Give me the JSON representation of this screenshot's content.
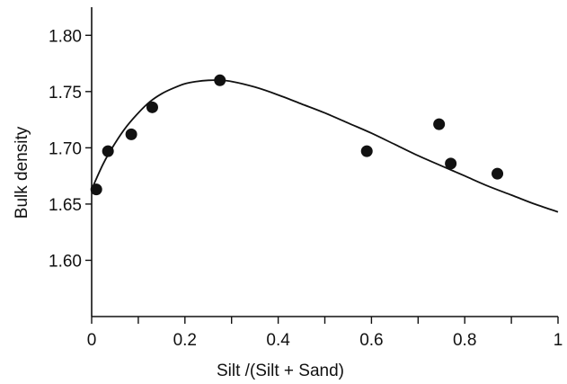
{
  "chart_data": {
    "type": "scatter",
    "xlabel": "Silt /(Silt + Sand)",
    "ylabel": "Bulk density",
    "xlim": [
      0,
      1
    ],
    "ylim": [
      1.55,
      1.825
    ],
    "x_ticks": [
      0,
      0.2,
      0.4,
      0.6,
      0.8,
      1
    ],
    "x_tick_labels": [
      "0",
      "0.2",
      "0.4",
      "0.6",
      "0.8",
      "1"
    ],
    "x_minor_ticks": [
      0.1,
      0.3,
      0.5,
      0.7,
      0.9
    ],
    "y_ticks": [
      1.6,
      1.65,
      1.7,
      1.75,
      1.8
    ],
    "y_tick_labels": [
      "1.60",
      "1.65",
      "1.70",
      "1.75",
      "1.80"
    ],
    "grid": false,
    "points": [
      {
        "x": 0.01,
        "y": 1.663
      },
      {
        "x": 0.035,
        "y": 1.697
      },
      {
        "x": 0.085,
        "y": 1.712
      },
      {
        "x": 0.13,
        "y": 1.736
      },
      {
        "x": 0.275,
        "y": 1.76
      },
      {
        "x": 0.59,
        "y": 1.697
      },
      {
        "x": 0.745,
        "y": 1.721
      },
      {
        "x": 0.77,
        "y": 1.686
      },
      {
        "x": 0.87,
        "y": 1.677
      }
    ],
    "fit_curve": {
      "x": [
        0,
        0.025,
        0.05,
        0.075,
        0.1,
        0.125,
        0.15,
        0.175,
        0.2,
        0.225,
        0.25,
        0.275,
        0.3,
        0.35,
        0.4,
        0.45,
        0.5,
        0.55,
        0.6,
        0.65,
        0.7,
        0.75,
        0.8,
        0.85,
        0.9,
        0.95,
        1
      ],
      "y": [
        1.663,
        1.686,
        1.704,
        1.719,
        1.731,
        1.741,
        1.748,
        1.753,
        1.757,
        1.759,
        1.76,
        1.76,
        1.759,
        1.754,
        1.747,
        1.739,
        1.731,
        1.722,
        1.713,
        1.703,
        1.693,
        1.684,
        1.675,
        1.666,
        1.658,
        1.65,
        1.643
      ]
    },
    "colors": {
      "marker": "#111111",
      "line": "#111111",
      "axis": "#111111"
    }
  }
}
